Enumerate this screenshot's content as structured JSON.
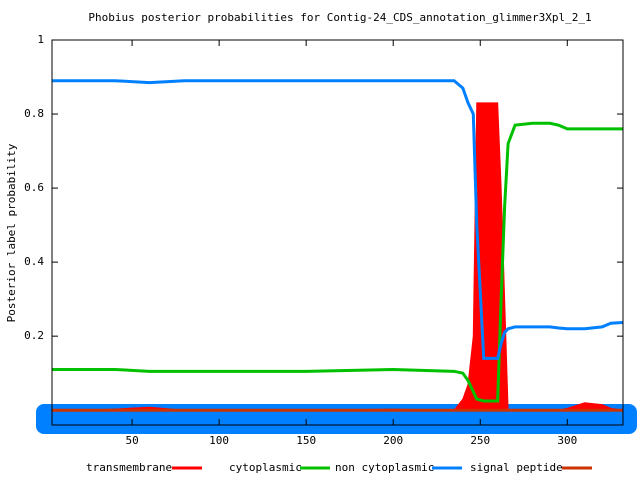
{
  "chart_data": {
    "type": "line",
    "title": "Phobius posterior probabilities for Contig-24_CDS_annotation_glimmer3Xpl_2_1",
    "y_label": "Posterior label probability",
    "x": [
      4,
      20,
      40,
      60,
      80,
      100,
      150,
      200,
      235,
      240,
      243,
      246,
      248,
      252,
      256,
      260,
      262,
      264,
      266,
      270,
      280,
      290,
      295,
      300,
      310,
      320,
      325,
      332
    ],
    "series": [
      {
        "name": "transmembrane",
        "color": "#ff0000",
        "style": "area",
        "values": [
          0,
          0,
          0.003,
          0.008,
          0,
          0,
          0,
          0.003,
          0,
          0.03,
          0.07,
          0.2,
          0.83,
          0.83,
          0.83,
          0.83,
          0.6,
          0.3,
          0,
          0,
          0,
          0,
          0,
          0.005,
          0.02,
          0.015,
          0.005,
          0
        ]
      },
      {
        "name": "cytoplasmic",
        "color": "#00c000",
        "style": "line",
        "values": [
          0.11,
          0.11,
          0.11,
          0.105,
          0.105,
          0.105,
          0.105,
          0.11,
          0.105,
          0.1,
          0.08,
          0.05,
          0.03,
          0.025,
          0.025,
          0.025,
          0.3,
          0.55,
          0.72,
          0.77,
          0.775,
          0.775,
          0.77,
          0.76,
          0.76,
          0.76,
          0.76,
          0.76
        ]
      },
      {
        "name": "non cytoplasmic",
        "color": "#0080ff",
        "style": "line",
        "values": [
          0.89,
          0.89,
          0.89,
          0.885,
          0.89,
          0.89,
          0.89,
          0.89,
          0.89,
          0.87,
          0.83,
          0.8,
          0.5,
          0.14,
          0.14,
          0.14,
          0.18,
          0.21,
          0.22,
          0.225,
          0.225,
          0.225,
          0.222,
          0.22,
          0.22,
          0.225,
          0.235,
          0.237
        ]
      },
      {
        "name": "signal peptide",
        "color": "#cc3300",
        "style": "line",
        "values": [
          0,
          0,
          0,
          0,
          0,
          0,
          0,
          0,
          0,
          0,
          0,
          0,
          0,
          0,
          0,
          0,
          0,
          0,
          0,
          0,
          0,
          0,
          0,
          0,
          0,
          0,
          0,
          0
        ]
      }
    ],
    "xlim": [
      4,
      332
    ],
    "ylim": [
      -0.04,
      1
    ],
    "xticks": [
      50,
      100,
      150,
      200,
      250,
      300
    ],
    "yticks": [
      0.2,
      0.4,
      0.6,
      0.8,
      1
    ],
    "grid": false,
    "legend": "bottom"
  }
}
